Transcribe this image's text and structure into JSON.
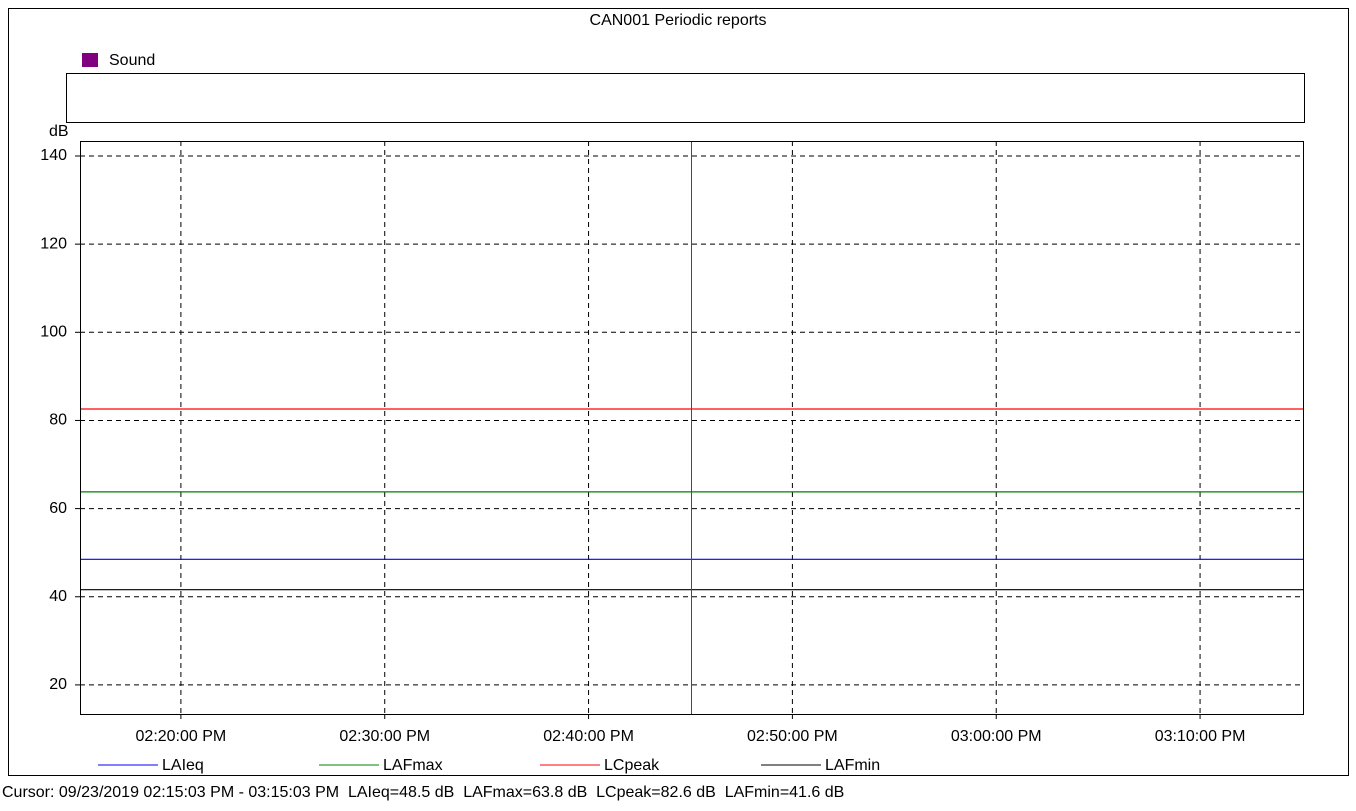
{
  "chart_data": {
    "type": "line",
    "title": "CAN001 Periodic reports",
    "band": {
      "name": "Sound",
      "color": "#800080"
    },
    "ylabel": "dB",
    "x": [
      "02:15:03 PM",
      "03:15:03 PM"
    ],
    "xlim": [
      "02:15:03 PM",
      "03:15:03 PM"
    ],
    "xticks": [
      "02:20:00 PM",
      "02:30:00 PM",
      "02:40:00 PM",
      "02:50:00 PM",
      "03:00:00 PM",
      "03:10:00 PM"
    ],
    "ylim": [
      13.4,
      143.4
    ],
    "yticks": [
      20,
      40,
      60,
      80,
      100,
      120,
      140
    ],
    "grid": true,
    "cursor": {
      "x": "02:45:03 PM",
      "color": "#ff0000"
    },
    "series": [
      {
        "name": "LAIeq",
        "color": "#0000ff",
        "values": [
          48.5,
          48.5
        ]
      },
      {
        "name": "LAFmax",
        "color": "#008000",
        "values": [
          63.8,
          63.8
        ]
      },
      {
        "name": "LCpeak",
        "color": "#ff0000",
        "values": [
          82.6,
          82.6
        ]
      },
      {
        "name": "LAFmin",
        "color": "#000000",
        "values": [
          41.6,
          41.6
        ]
      }
    ],
    "status": "Cursor: 09/23/2019 02:15:03 PM - 03:15:03 PM  LAIeq=48.5 dB  LAFmax=63.8 dB  LCpeak=82.6 dB  LAFmin=41.6 dB"
  }
}
